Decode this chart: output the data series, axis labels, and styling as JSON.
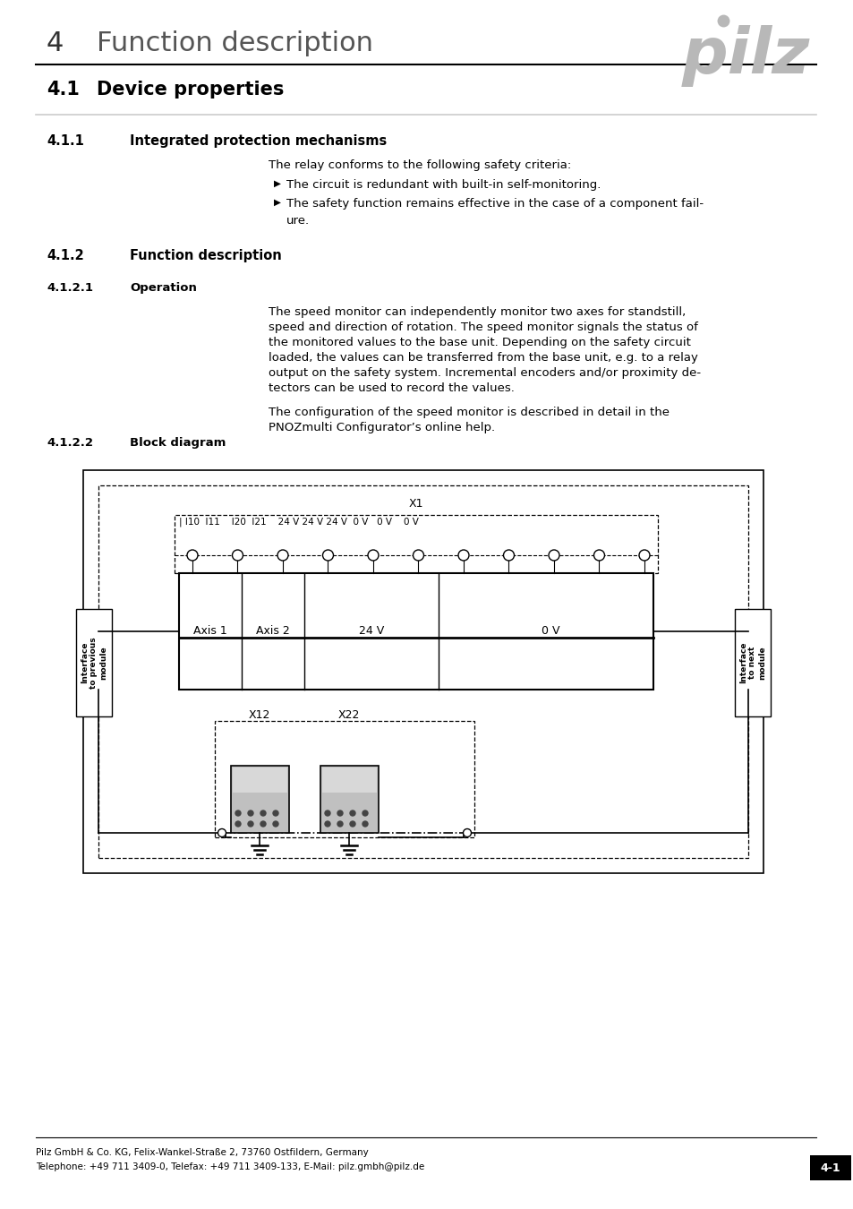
{
  "page_bg": "#ffffff",
  "header_num": "4",
  "header_title": "Function description",
  "pilz_color": "#aaaaaa",
  "s41_num": "4.1",
  "s41_title": "Device properties",
  "s411_num": "4.1.1",
  "s411_title": "Integrated protection mechanisms",
  "s411_intro": "The relay conforms to the following safety criteria:",
  "s411_b1": "The circuit is redundant with built-in self-monitoring.",
  "s411_b2a": "The safety function remains effective in the case of a component fail-",
  "s411_b2b": "ure.",
  "s412_num": "4.1.2",
  "s412_title": "Function description",
  "s4121_num": "4.1.2.1",
  "s4121_title": "Operation",
  "op1": "The speed monitor can independently monitor two axes for standstill,",
  "op2": "speed and direction of rotation. The speed monitor signals the status of",
  "op3": "the monitored values to the base unit. Depending on the safety circuit",
  "op4": "loaded, the values can be transferred from the base unit, e.g. to a relay",
  "op5": "output on the safety system. Incremental encoders and/or proximity de-",
  "op6": "tectors can be used to record the values.",
  "op7": "The configuration of the speed monitor is described in detail in the",
  "op8": "PNOZmulti Configurator’s online help.",
  "s4122_num": "4.1.2.2",
  "s4122_title": "Block diagram",
  "footer1": "Pilz GmbH & Co. KG, Felix-Wankel-Straße 2, 73760 Ostfildern, Germany",
  "footer2": "Telephone: +49 711 3409-0, Telefax: +49 711 3409-133, E-Mail: pilz.gmbh@pilz.de",
  "footer_page": "4-1"
}
